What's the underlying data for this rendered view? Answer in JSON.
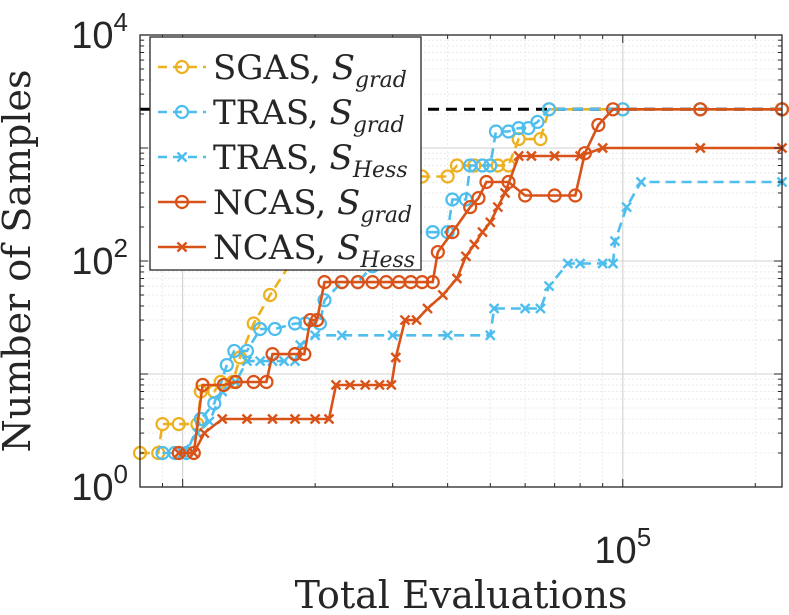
{
  "chart_data": {
    "type": "line",
    "xscale": "log",
    "yscale": "log",
    "xlabel": "Total Evaluations",
    "ylabel": "Number of Samples",
    "xlim": [
      8000,
      230000
    ],
    "ylim": [
      1,
      10000
    ],
    "grid": true,
    "legend_position": "top-left",
    "x_tick_labels": [
      {
        "value": 100000,
        "base": "10",
        "exp": "5"
      }
    ],
    "y_tick_labels": [
      {
        "value": 1,
        "base": "10",
        "exp": "0"
      },
      {
        "value": 100,
        "base": "10",
        "exp": "2"
      },
      {
        "value": 10000,
        "base": "10",
        "exp": "4"
      }
    ],
    "reference_line": {
      "y": 2200,
      "style": "dashed",
      "color": "#000000"
    },
    "series": [
      {
        "name": "SGAS",
        "subscript": "grad",
        "color": "#EDB120",
        "marker": "circle",
        "line": "dashed",
        "points": [
          [
            8000,
            2
          ],
          [
            8800,
            2
          ],
          [
            9000,
            3.6
          ],
          [
            9800,
            3.6
          ],
          [
            10800,
            3.6
          ],
          [
            11000,
            7
          ],
          [
            11800,
            7
          ],
          [
            12200,
            8.5
          ],
          [
            13000,
            8.5
          ],
          [
            13500,
            14
          ],
          [
            14500,
            28
          ],
          [
            15800,
            50
          ],
          [
            18000,
            110
          ],
          [
            20000,
            200
          ],
          [
            23000,
            200
          ],
          [
            26000,
            200
          ],
          [
            28000,
            360
          ],
          [
            30000,
            560
          ],
          [
            35000,
            560
          ],
          [
            40000,
            560
          ],
          [
            42000,
            700
          ],
          [
            46000,
            700
          ],
          [
            50000,
            700
          ],
          [
            52000,
            700
          ],
          [
            55000,
            700
          ],
          [
            58000,
            1200
          ],
          [
            65000,
            1200
          ],
          [
            68000,
            2200
          ],
          [
            100000,
            2200
          ],
          [
            150000,
            2200
          ],
          [
            230000,
            2200
          ]
        ]
      },
      {
        "name": "TRAS",
        "subscript": "grad",
        "color": "#4DBEEE",
        "marker": "circle",
        "line": "dashed",
        "points": [
          [
            9000,
            2
          ],
          [
            9600,
            2
          ],
          [
            10200,
            2
          ],
          [
            11000,
            4
          ],
          [
            11800,
            5.5
          ],
          [
            12600,
            12
          ],
          [
            13100,
            16
          ],
          [
            14000,
            16
          ],
          [
            15000,
            25
          ],
          [
            16200,
            25
          ],
          [
            18000,
            28
          ],
          [
            19000,
            28
          ],
          [
            20500,
            28
          ],
          [
            21000,
            45
          ],
          [
            23000,
            65
          ],
          [
            25000,
            65
          ],
          [
            27000,
            90
          ],
          [
            29000,
            110
          ],
          [
            30000,
            180
          ],
          [
            33000,
            180
          ],
          [
            37000,
            180
          ],
          [
            40000,
            180
          ],
          [
            41000,
            350
          ],
          [
            44000,
            350
          ],
          [
            45000,
            700
          ],
          [
            48000,
            700
          ],
          [
            50000,
            700
          ],
          [
            51500,
            1400
          ],
          [
            55000,
            1400
          ],
          [
            58000,
            1500
          ],
          [
            61000,
            1500
          ],
          [
            64000,
            1700
          ],
          [
            68000,
            2200
          ],
          [
            100000,
            2200
          ],
          [
            150000,
            2200
          ],
          [
            230000,
            2200
          ]
        ]
      },
      {
        "name": "TRAS",
        "subscript": "Hess",
        "color": "#4DBEEE",
        "marker": "x",
        "line": "dashed",
        "points": [
          [
            10000,
            2
          ],
          [
            10800,
            3
          ],
          [
            11500,
            3.8
          ],
          [
            12300,
            7
          ],
          [
            13200,
            8.5
          ],
          [
            14000,
            13
          ],
          [
            15000,
            13
          ],
          [
            16000,
            13
          ],
          [
            17000,
            13
          ],
          [
            18000,
            13
          ],
          [
            18500,
            18
          ],
          [
            20000,
            22
          ],
          [
            23000,
            22
          ],
          [
            30000,
            22
          ],
          [
            40000,
            22
          ],
          [
            50000,
            22
          ],
          [
            51000,
            38
          ],
          [
            60000,
            38
          ],
          [
            65000,
            38
          ],
          [
            68000,
            60
          ],
          [
            75000,
            95
          ],
          [
            80000,
            95
          ],
          [
            90000,
            95
          ],
          [
            95000,
            95
          ],
          [
            96000,
            150
          ],
          [
            102000,
            300
          ],
          [
            110000,
            500
          ],
          [
            230000,
            500
          ]
        ]
      },
      {
        "name": "NCAS",
        "subscript": "grad",
        "color": "#D95319",
        "marker": "circle",
        "line": "solid",
        "points": [
          [
            9800,
            2
          ],
          [
            10600,
            2
          ],
          [
            11100,
            8
          ],
          [
            12400,
            8
          ],
          [
            13200,
            8.5
          ],
          [
            14500,
            8.5
          ],
          [
            15500,
            8.5
          ],
          [
            16000,
            15
          ],
          [
            18000,
            15
          ],
          [
            18900,
            15
          ],
          [
            19500,
            30
          ],
          [
            20200,
            30
          ],
          [
            21000,
            65
          ],
          [
            23000,
            65
          ],
          [
            25000,
            65
          ],
          [
            27000,
            65
          ],
          [
            29000,
            65
          ],
          [
            31000,
            65
          ],
          [
            33000,
            65
          ],
          [
            35000,
            65
          ],
          [
            37000,
            65
          ],
          [
            38000,
            120
          ],
          [
            41000,
            180
          ],
          [
            45000,
            300
          ],
          [
            47000,
            360
          ],
          [
            49000,
            500
          ],
          [
            55000,
            500
          ],
          [
            60000,
            380
          ],
          [
            70000,
            380
          ],
          [
            78000,
            380
          ],
          [
            82000,
            900
          ],
          [
            88000,
            1600
          ],
          [
            95000,
            2200
          ],
          [
            150000,
            2200
          ],
          [
            230000,
            2200
          ]
        ]
      },
      {
        "name": "NCAS",
        "subscript": "Hess",
        "color": "#D95319",
        "marker": "x",
        "line": "solid",
        "points": [
          [
            9800,
            2
          ],
          [
            10600,
            2
          ],
          [
            11200,
            3
          ],
          [
            12300,
            4
          ],
          [
            14000,
            4
          ],
          [
            16000,
            4
          ],
          [
            18000,
            4
          ],
          [
            20000,
            4
          ],
          [
            21500,
            4
          ],
          [
            22300,
            8
          ],
          [
            24000,
            8
          ],
          [
            26000,
            8
          ],
          [
            28000,
            8
          ],
          [
            29800,
            8
          ],
          [
            30500,
            14
          ],
          [
            32000,
            30
          ],
          [
            34000,
            30
          ],
          [
            36000,
            38
          ],
          [
            39000,
            50
          ],
          [
            42000,
            70
          ],
          [
            44000,
            110
          ],
          [
            46000,
            140
          ],
          [
            48000,
            180
          ],
          [
            50000,
            220
          ],
          [
            52000,
            300
          ],
          [
            54000,
            400
          ],
          [
            58000,
            850
          ],
          [
            62000,
            850
          ],
          [
            70000,
            850
          ],
          [
            80000,
            850
          ],
          [
            90000,
            1000
          ],
          [
            150000,
            1000
          ],
          [
            230000,
            1000
          ]
        ]
      }
    ]
  }
}
